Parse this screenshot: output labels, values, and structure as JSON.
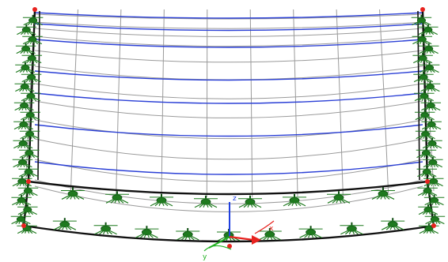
{
  "viewport": {
    "background": "#ffffff",
    "colors": {
      "black_edge": "#111111",
      "blue_curve": "#2a3fd6",
      "grey_grid": "#9a9a9a",
      "node": "#e8231f",
      "support": "#1f7a1f",
      "support_dark": "#0f4f12",
      "axis_x": "#e8231f",
      "axis_y": "#1fb01f",
      "axis_z": "#2040e0"
    },
    "axes": {
      "x_label": "x",
      "y_label": "y",
      "z_label": "z"
    }
  }
}
